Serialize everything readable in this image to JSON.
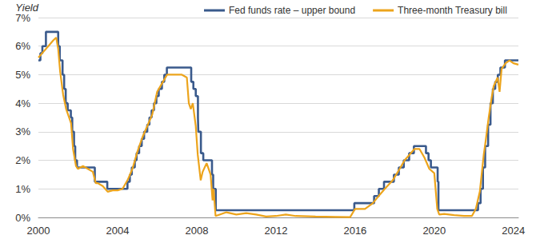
{
  "chart_data": {
    "type": "line",
    "y_label": "Yield",
    "legend": "top",
    "grid": true,
    "xlim": [
      2000,
      2024.25
    ],
    "xticks": [
      2000,
      2004,
      2008,
      2012,
      2016,
      2020,
      2024
    ],
    "ylim": [
      0,
      7
    ],
    "yticks": [
      {
        "value": 0,
        "label": "0%"
      },
      {
        "value": 1,
        "label": "1%"
      },
      {
        "value": 2,
        "label": "2%"
      },
      {
        "value": 3,
        "label": "3%"
      },
      {
        "value": 4,
        "label": "4%"
      },
      {
        "value": 5,
        "label": "5%"
      },
      {
        "value": 6,
        "label": "6%"
      },
      {
        "value": 7,
        "label": "7%"
      }
    ],
    "series": [
      {
        "name": "Fed funds rate – upper bound",
        "color": "#3a5a8c",
        "line_style": "step",
        "x": [
          2000.0,
          2000.1,
          2000.2,
          2000.38,
          2001.0,
          2001.08,
          2001.22,
          2001.3,
          2001.38,
          2001.48,
          2001.64,
          2001.71,
          2001.8,
          2001.86,
          2001.95,
          2002.85,
          2003.48,
          2004.5,
          2004.62,
          2004.72,
          2004.87,
          2004.96,
          2005.09,
          2005.22,
          2005.34,
          2005.5,
          2005.61,
          2005.72,
          2005.84,
          2005.96,
          2006.08,
          2006.24,
          2006.36,
          2006.49,
          2007.72,
          2007.83,
          2007.95,
          2008.06,
          2008.08,
          2008.21,
          2008.33,
          2008.77,
          2008.83,
          2008.96,
          2015.96,
          2016.96,
          2017.2,
          2017.46,
          2017.96,
          2018.21,
          2018.46,
          2018.73,
          2018.97,
          2019.58,
          2019.71,
          2019.83,
          2020.17,
          2020.21,
          2022.21,
          2022.34,
          2022.46,
          2022.57,
          2022.72,
          2022.84,
          2022.96,
          2023.08,
          2023.21,
          2023.34,
          2023.57,
          2024.25
        ],
        "values": [
          5.5,
          5.75,
          6.0,
          6.5,
          6.0,
          5.5,
          5.0,
          4.5,
          4.0,
          3.75,
          3.5,
          3.0,
          2.5,
          2.0,
          1.75,
          1.25,
          1.0,
          1.25,
          1.5,
          1.75,
          2.0,
          2.25,
          2.5,
          2.75,
          3.0,
          3.25,
          3.5,
          3.75,
          4.0,
          4.25,
          4.5,
          4.75,
          5.0,
          5.25,
          4.75,
          4.5,
          4.25,
          3.5,
          3.0,
          2.25,
          2.0,
          1.5,
          1.0,
          0.25,
          0.5,
          0.75,
          1.0,
          1.25,
          1.5,
          1.75,
          2.0,
          2.25,
          2.5,
          2.25,
          2.0,
          1.75,
          1.25,
          0.25,
          0.5,
          1.0,
          1.75,
          2.5,
          3.25,
          4.0,
          4.5,
          4.75,
          5.0,
          5.25,
          5.5,
          5.5
        ]
      },
      {
        "name": "Three-month Treasury bill",
        "color": "#eca41c",
        "line_style": "solid",
        "x": [
          2000.0,
          2000.25,
          2000.5,
          2000.75,
          2000.9,
          2001.0,
          2001.1,
          2001.25,
          2001.4,
          2001.5,
          2001.65,
          2001.75,
          2001.9,
          2002.0,
          2002.25,
          2002.5,
          2002.75,
          2002.9,
          2003.0,
          2003.25,
          2003.5,
          2003.75,
          2004.0,
          2004.25,
          2004.5,
          2004.75,
          2005.0,
          2005.25,
          2005.5,
          2005.75,
          2006.0,
          2006.25,
          2006.5,
          2006.75,
          2007.0,
          2007.25,
          2007.5,
          2007.6,
          2007.7,
          2007.8,
          2007.95,
          2008.05,
          2008.2,
          2008.3,
          2008.5,
          2008.7,
          2008.8,
          2008.85,
          2008.95,
          2009.5,
          2010.0,
          2010.5,
          2011.0,
          2011.5,
          2012.0,
          2012.5,
          2013.0,
          2014.0,
          2015.0,
          2015.75,
          2016.0,
          2016.5,
          2016.9,
          2017.25,
          2017.5,
          2017.9,
          2018.25,
          2018.5,
          2018.75,
          2019.0,
          2019.25,
          2019.5,
          2019.75,
          2020.0,
          2020.15,
          2020.25,
          2020.5,
          2021.0,
          2021.5,
          2021.9,
          2022.1,
          2022.3,
          2022.5,
          2022.6,
          2022.75,
          2022.9,
          2023.0,
          2023.2,
          2023.3,
          2023.4,
          2023.6,
          2023.8,
          2024.0,
          2024.25
        ],
        "values": [
          5.6,
          5.8,
          6.0,
          6.2,
          6.3,
          5.9,
          5.1,
          4.3,
          3.8,
          3.6,
          3.3,
          2.4,
          1.8,
          1.7,
          1.8,
          1.7,
          1.6,
          1.2,
          1.2,
          1.1,
          0.9,
          0.95,
          0.95,
          1.0,
          1.3,
          1.7,
          2.3,
          2.8,
          3.2,
          3.6,
          4.4,
          4.7,
          5.0,
          5.0,
          5.0,
          5.0,
          4.9,
          4.0,
          3.8,
          4.0,
          3.2,
          2.2,
          1.3,
          1.6,
          1.9,
          1.5,
          0.6,
          1.0,
          0.05,
          0.18,
          0.1,
          0.15,
          0.1,
          0.03,
          0.05,
          0.1,
          0.05,
          0.03,
          0.02,
          0.01,
          0.3,
          0.3,
          0.5,
          0.8,
          1.0,
          1.3,
          1.7,
          2.0,
          2.2,
          2.4,
          2.4,
          2.1,
          1.7,
          1.55,
          0.3,
          0.1,
          0.12,
          0.08,
          0.05,
          0.05,
          0.3,
          0.9,
          2.2,
          2.7,
          3.5,
          4.2,
          4.6,
          4.9,
          4.4,
          5.2,
          5.4,
          5.5,
          5.4,
          5.35
        ]
      }
    ]
  }
}
